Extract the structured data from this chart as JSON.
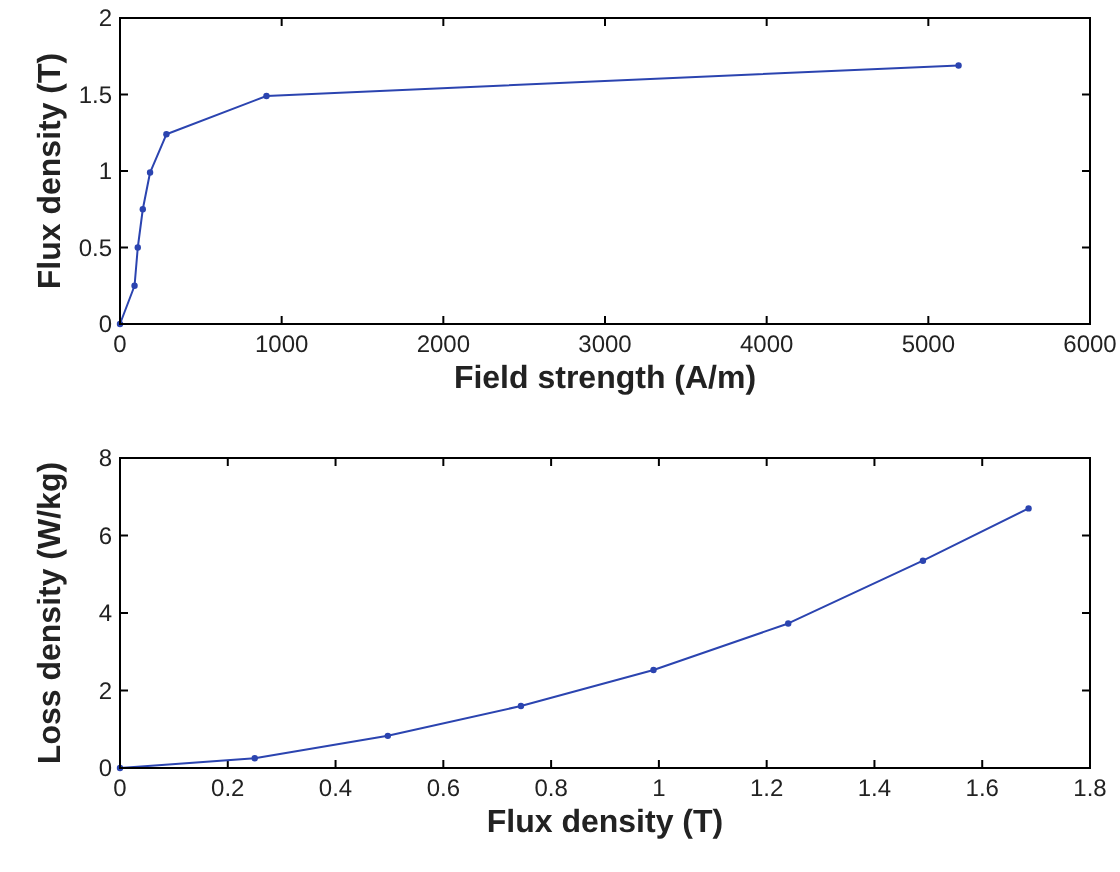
{
  "chart_data": [
    {
      "type": "line",
      "xlabel": "Field strength (A/m)",
      "ylabel": "Flux density (T)",
      "marker": "circle",
      "line_style": "solid",
      "grid": false,
      "xlim": [
        0,
        6000
      ],
      "ylim": [
        0,
        2
      ],
      "xticks": [
        0,
        1000,
        2000,
        3000,
        4000,
        5000,
        6000
      ],
      "yticks": [
        0,
        0.5,
        1,
        1.5,
        2
      ],
      "series": [
        {
          "color": "#2b44b0",
          "x": [
            0,
            90,
            110,
            141,
            186,
            287,
            906,
            5187
          ],
          "values": [
            0,
            0.25,
            0.5,
            0.75,
            0.99,
            1.24,
            1.49,
            1.69
          ]
        }
      ]
    },
    {
      "type": "line",
      "xlabel": "Flux density (T)",
      "ylabel": "Loss density (W/kg)",
      "marker": "circle",
      "line_style": "solid",
      "grid": false,
      "xlim": [
        0,
        1.8
      ],
      "ylim": [
        0,
        8
      ],
      "xticks": [
        0,
        0.2,
        0.4,
        0.6,
        0.8,
        1,
        1.2,
        1.4,
        1.6,
        1.8
      ],
      "yticks": [
        0,
        2,
        4,
        6,
        8
      ],
      "series": [
        {
          "color": "#2b44b0",
          "x": [
            0,
            0.25,
            0.497,
            0.744,
            0.99,
            1.24,
            1.49,
            1.686
          ],
          "values": [
            0,
            0.25,
            0.83,
            1.6,
            2.53,
            3.73,
            5.35,
            6.7
          ]
        }
      ]
    }
  ]
}
